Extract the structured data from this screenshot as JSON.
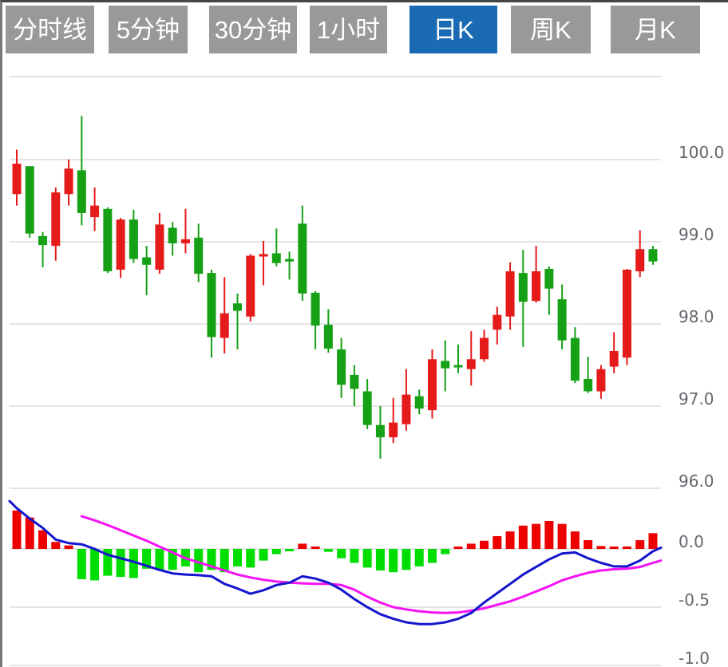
{
  "toolbar": {
    "tabs": [
      {
        "label": "分时线",
        "active": false
      },
      {
        "label": "5分钟",
        "active": false
      },
      {
        "label": "30分钟",
        "active": false
      },
      {
        "label": "1小时",
        "active": false
      },
      {
        "label": "日K",
        "active": true
      },
      {
        "label": "周K",
        "active": false
      },
      {
        "label": "月K",
        "active": false
      }
    ]
  },
  "colors": {
    "tab_bg": "#999999",
    "tab_active_bg": "#1a6bb4",
    "tab_text": "#ffffff",
    "grid": "#e4e4e4",
    "axis_text": "#66666e",
    "candle_up": "#e51a1a",
    "candle_down": "#16a016",
    "macd_up": "#ee0000",
    "macd_down": "#00dd00",
    "dif_line": "#1515cd",
    "dea_line": "#f512f5"
  },
  "chart_data": {
    "type": "candlestick+macd",
    "title": "日K (daily candlestick) chart with MACD",
    "legend_position": "none",
    "grid": true,
    "price_axis": {
      "side": "right",
      "values": [
        100.0,
        99.0,
        98.0,
        97.0,
        96.0
      ],
      "labels": [
        "100.0",
        "99.0",
        "98.0",
        "97.0",
        "96.0"
      ],
      "ylim": [
        95.6,
        101.0
      ]
    },
    "macd_axis": {
      "side": "right",
      "values": [
        0.0,
        -0.5,
        -1.0
      ],
      "labels": [
        "0.0",
        "-0.5",
        "-1.0"
      ],
      "ylim": [
        -1.02,
        0.45
      ]
    },
    "candles": [
      {
        "o": 99.58,
        "h": 100.12,
        "l": 99.44,
        "c": 99.95
      },
      {
        "o": 99.92,
        "h": 99.92,
        "l": 99.05,
        "c": 99.1
      },
      {
        "o": 99.07,
        "h": 99.12,
        "l": 98.69,
        "c": 98.96
      },
      {
        "o": 98.95,
        "h": 99.66,
        "l": 98.77,
        "c": 99.6
      },
      {
        "o": 99.58,
        "h": 100.0,
        "l": 99.44,
        "c": 99.89
      },
      {
        "o": 99.87,
        "h": 100.53,
        "l": 99.2,
        "c": 99.35
      },
      {
        "o": 99.3,
        "h": 99.66,
        "l": 99.13,
        "c": 99.44
      },
      {
        "o": 99.4,
        "h": 99.42,
        "l": 98.62,
        "c": 98.64
      },
      {
        "o": 98.66,
        "h": 99.29,
        "l": 98.56,
        "c": 99.27
      },
      {
        "o": 99.27,
        "h": 99.39,
        "l": 98.74,
        "c": 98.79
      },
      {
        "o": 98.81,
        "h": 98.95,
        "l": 98.35,
        "c": 98.72
      },
      {
        "o": 98.66,
        "h": 99.35,
        "l": 98.61,
        "c": 99.21
      },
      {
        "o": 99.17,
        "h": 99.24,
        "l": 98.83,
        "c": 98.98
      },
      {
        "o": 98.98,
        "h": 99.4,
        "l": 98.86,
        "c": 99.03
      },
      {
        "o": 99.05,
        "h": 99.22,
        "l": 98.51,
        "c": 98.61
      },
      {
        "o": 98.62,
        "h": 98.66,
        "l": 97.59,
        "c": 97.84
      },
      {
        "o": 97.83,
        "h": 98.57,
        "l": 97.64,
        "c": 98.13
      },
      {
        "o": 98.25,
        "h": 98.37,
        "l": 97.69,
        "c": 98.16
      },
      {
        "o": 98.09,
        "h": 98.85,
        "l": 98.03,
        "c": 98.83
      },
      {
        "o": 98.82,
        "h": 99.01,
        "l": 98.47,
        "c": 98.85
      },
      {
        "o": 98.86,
        "h": 99.16,
        "l": 98.7,
        "c": 98.74
      },
      {
        "o": 98.79,
        "h": 98.88,
        "l": 98.54,
        "c": 98.76
      },
      {
        "o": 99.22,
        "h": 99.44,
        "l": 98.28,
        "c": 98.37
      },
      {
        "o": 98.38,
        "h": 98.4,
        "l": 97.69,
        "c": 97.98
      },
      {
        "o": 97.99,
        "h": 98.18,
        "l": 97.65,
        "c": 97.7
      },
      {
        "o": 97.69,
        "h": 97.83,
        "l": 97.1,
        "c": 97.26
      },
      {
        "o": 97.38,
        "h": 97.5,
        "l": 97.0,
        "c": 97.21
      },
      {
        "o": 97.18,
        "h": 97.33,
        "l": 96.72,
        "c": 96.77
      },
      {
        "o": 96.77,
        "h": 97.0,
        "l": 96.36,
        "c": 96.62
      },
      {
        "o": 96.62,
        "h": 97.1,
        "l": 96.55,
        "c": 96.8
      },
      {
        "o": 96.78,
        "h": 97.45,
        "l": 96.7,
        "c": 97.14
      },
      {
        "o": 97.12,
        "h": 97.2,
        "l": 96.9,
        "c": 96.97
      },
      {
        "o": 96.95,
        "h": 97.69,
        "l": 96.85,
        "c": 97.57
      },
      {
        "o": 97.55,
        "h": 97.8,
        "l": 97.18,
        "c": 97.46
      },
      {
        "o": 97.5,
        "h": 97.75,
        "l": 97.4,
        "c": 97.48
      },
      {
        "o": 97.45,
        "h": 97.91,
        "l": 97.25,
        "c": 97.57
      },
      {
        "o": 97.57,
        "h": 97.93,
        "l": 97.54,
        "c": 97.83
      },
      {
        "o": 97.93,
        "h": 98.21,
        "l": 97.75,
        "c": 98.11
      },
      {
        "o": 98.09,
        "h": 98.75,
        "l": 97.93,
        "c": 98.64
      },
      {
        "o": 98.62,
        "h": 98.9,
        "l": 97.72,
        "c": 98.27
      },
      {
        "o": 98.28,
        "h": 98.95,
        "l": 98.26,
        "c": 98.64
      },
      {
        "o": 98.67,
        "h": 98.7,
        "l": 98.11,
        "c": 98.43
      },
      {
        "o": 98.3,
        "h": 98.48,
        "l": 97.69,
        "c": 97.8
      },
      {
        "o": 97.83,
        "h": 97.96,
        "l": 97.28,
        "c": 97.31
      },
      {
        "o": 97.33,
        "h": 97.6,
        "l": 97.16,
        "c": 97.18
      },
      {
        "o": 97.18,
        "h": 97.5,
        "l": 97.09,
        "c": 97.45
      },
      {
        "o": 97.48,
        "h": 97.9,
        "l": 97.4,
        "c": 97.67
      },
      {
        "o": 97.59,
        "h": 98.67,
        "l": 97.5,
        "c": 98.66
      },
      {
        "o": 98.64,
        "h": 99.14,
        "l": 98.57,
        "c": 98.91
      },
      {
        "o": 98.91,
        "h": 98.95,
        "l": 98.72,
        "c": 98.76
      }
    ],
    "macd": {
      "histogram": [
        0.33,
        0.27,
        0.16,
        0.06,
        0.03,
        -0.26,
        -0.27,
        -0.23,
        -0.24,
        -0.25,
        -0.17,
        -0.18,
        -0.18,
        -0.15,
        -0.2,
        -0.18,
        -0.2,
        -0.15,
        -0.16,
        -0.1,
        -0.045,
        -0.015,
        0.045,
        0.02,
        -0.025,
        -0.08,
        -0.12,
        -0.16,
        -0.185,
        -0.2,
        -0.18,
        -0.15,
        -0.12,
        -0.045,
        0.01,
        0.045,
        0.07,
        0.11,
        0.15,
        0.2,
        0.215,
        0.24,
        0.215,
        0.15,
        0.075,
        0.025,
        0.02,
        0.02,
        0.075,
        0.135
      ],
      "dif": [
        0.35,
        0.26,
        0.18,
        0.08,
        0.05,
        0.04,
        0.0,
        -0.05,
        -0.08,
        -0.11,
        -0.145,
        -0.18,
        -0.21,
        -0.22,
        -0.225,
        -0.235,
        -0.3,
        -0.34,
        -0.385,
        -0.355,
        -0.31,
        -0.29,
        -0.235,
        -0.255,
        -0.29,
        -0.35,
        -0.43,
        -0.5,
        -0.56,
        -0.6,
        -0.63,
        -0.645,
        -0.645,
        -0.63,
        -0.6,
        -0.55,
        -0.46,
        -0.38,
        -0.3,
        -0.22,
        -0.155,
        -0.09,
        -0.04,
        -0.03,
        -0.08,
        -0.12,
        -0.15,
        -0.15,
        -0.1,
        -0.02
      ],
      "dif_edge_left": 0.41,
      "dif_edge_right": 0.01,
      "dea": [
        null,
        null,
        null,
        null,
        null,
        0.28,
        0.245,
        0.205,
        0.16,
        0.115,
        0.07,
        0.02,
        -0.03,
        -0.08,
        -0.115,
        -0.15,
        -0.185,
        -0.22,
        -0.245,
        -0.265,
        -0.28,
        -0.29,
        -0.295,
        -0.3,
        -0.3,
        -0.31,
        -0.35,
        -0.41,
        -0.46,
        -0.5,
        -0.52,
        -0.535,
        -0.545,
        -0.55,
        -0.545,
        -0.53,
        -0.51,
        -0.48,
        -0.45,
        -0.41,
        -0.365,
        -0.32,
        -0.27,
        -0.235,
        -0.205,
        -0.185,
        -0.175,
        -0.17,
        -0.155,
        -0.12
      ],
      "dea_edge_right": -0.1
    }
  }
}
